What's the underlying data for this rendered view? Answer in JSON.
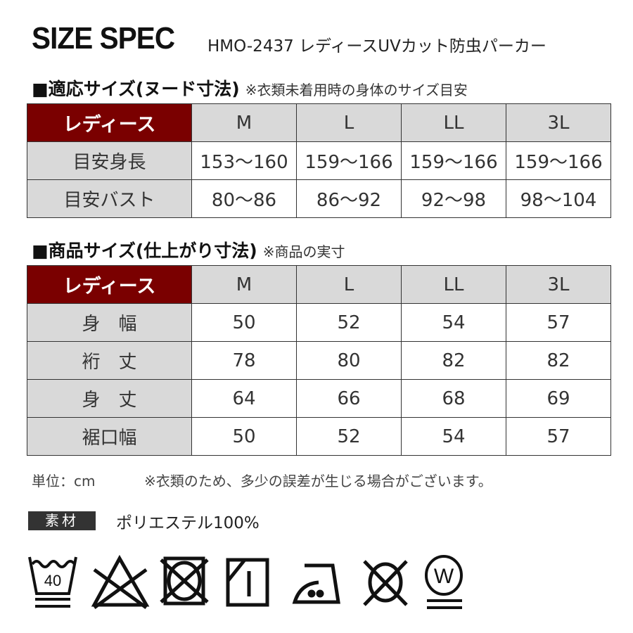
{
  "title": "SIZE SPEC",
  "subtitle": "HMO-2437 レディースUVカット防虫パーカー",
  "nude": {
    "heading": "■適応サイズ(ヌード寸法)",
    "note": "※衣類未着用時の身体のサイズ目安",
    "header": [
      "レディース",
      "M",
      "L",
      "LL",
      "3L"
    ],
    "rows": [
      [
        "目安身長",
        "153〜160",
        "159〜166",
        "159〜166",
        "159〜166"
      ],
      [
        "目安バスト",
        "80〜86",
        "86〜92",
        "92〜98",
        "98〜104"
      ]
    ]
  },
  "product": {
    "heading": "■商品サイズ(仕上がり寸法)",
    "note": "※商品の実寸",
    "header": [
      "レディース",
      "M",
      "L",
      "LL",
      "3L"
    ],
    "rows": [
      [
        "身　幅",
        "50",
        "52",
        "54",
        "57"
      ],
      [
        "裄　丈",
        "78",
        "80",
        "82",
        "82"
      ],
      [
        "身　丈",
        "64",
        "66",
        "68",
        "69"
      ],
      [
        "裾口幅",
        "50",
        "52",
        "54",
        "57"
      ]
    ]
  },
  "unit": "単位：cm",
  "disclaimer": "※衣類のため、多少の誤差が生じる場合がございます。",
  "material": {
    "label": "素材",
    "value": "ポリエステル100%"
  },
  "care_icons": [
    "wash-40-gentle-icon",
    "no-bleach-icon",
    "no-tumble-dry-icon",
    "line-dry-shade-icon",
    "iron-medium-icon",
    "no-dry-clean-icon",
    "wet-clean-gentle-icon"
  ],
  "care_text": {
    "wash_temp": "40",
    "wet": "W"
  },
  "colors": {
    "header_bg": "#7a0000",
    "cell_gray": "#d9d9d9"
  }
}
